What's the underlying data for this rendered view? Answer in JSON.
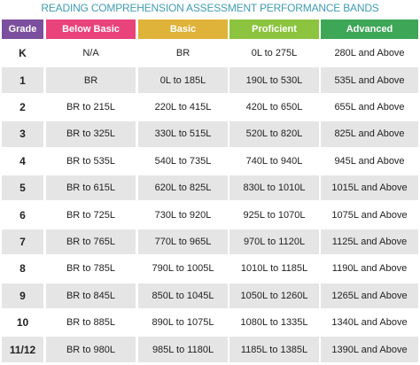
{
  "title": "READING COMPREHENSION ASSESSMENT PERFORMANCE BANDS",
  "table": {
    "header": [
      "Grade",
      "Below Basic",
      "Basic",
      "Proficient",
      "Advanced"
    ],
    "rows": [
      [
        "K",
        "N/A",
        "BR",
        "0L to 275L",
        "280L and Above"
      ],
      [
        "1",
        "BR",
        "0L to 185L",
        "190L to 530L",
        "535L and Above"
      ],
      [
        "2",
        "BR to 215L",
        "220L to 415L",
        "420L to 650L",
        "655L and Above"
      ],
      [
        "3",
        "BR to 325L",
        "330L to 515L",
        "520L to 820L",
        "825L and Above"
      ],
      [
        "4",
        "BR to 535L",
        "540L to 735L",
        "740L to 940L",
        "945L and Above"
      ],
      [
        "5",
        "BR to 615L",
        "620L to 825L",
        "830L to 1010L",
        "1015L and Above"
      ],
      [
        "6",
        "BR to 725L",
        "730L to 920L",
        "925L to 1070L",
        "1075L and Above"
      ],
      [
        "7",
        "BR to 765L",
        "770L to 965L",
        "970L to 1120L",
        "1125L and Above"
      ],
      [
        "8",
        "BR to 785L",
        "790L to 1005L",
        "1010L to 1185L",
        "1190L and Above"
      ],
      [
        "9",
        "BR to 845L",
        "850L to 1045L",
        "1050L to 1260L",
        "1265L and Above"
      ],
      [
        "10",
        "BR to 885L",
        "890L to 1075L",
        "1080L to 1335L",
        "1340L and Above"
      ],
      [
        "11/12",
        "BR to 980L",
        "985L to 1180L",
        "1185L to 1385L",
        "1390L and Above"
      ]
    ]
  }
}
